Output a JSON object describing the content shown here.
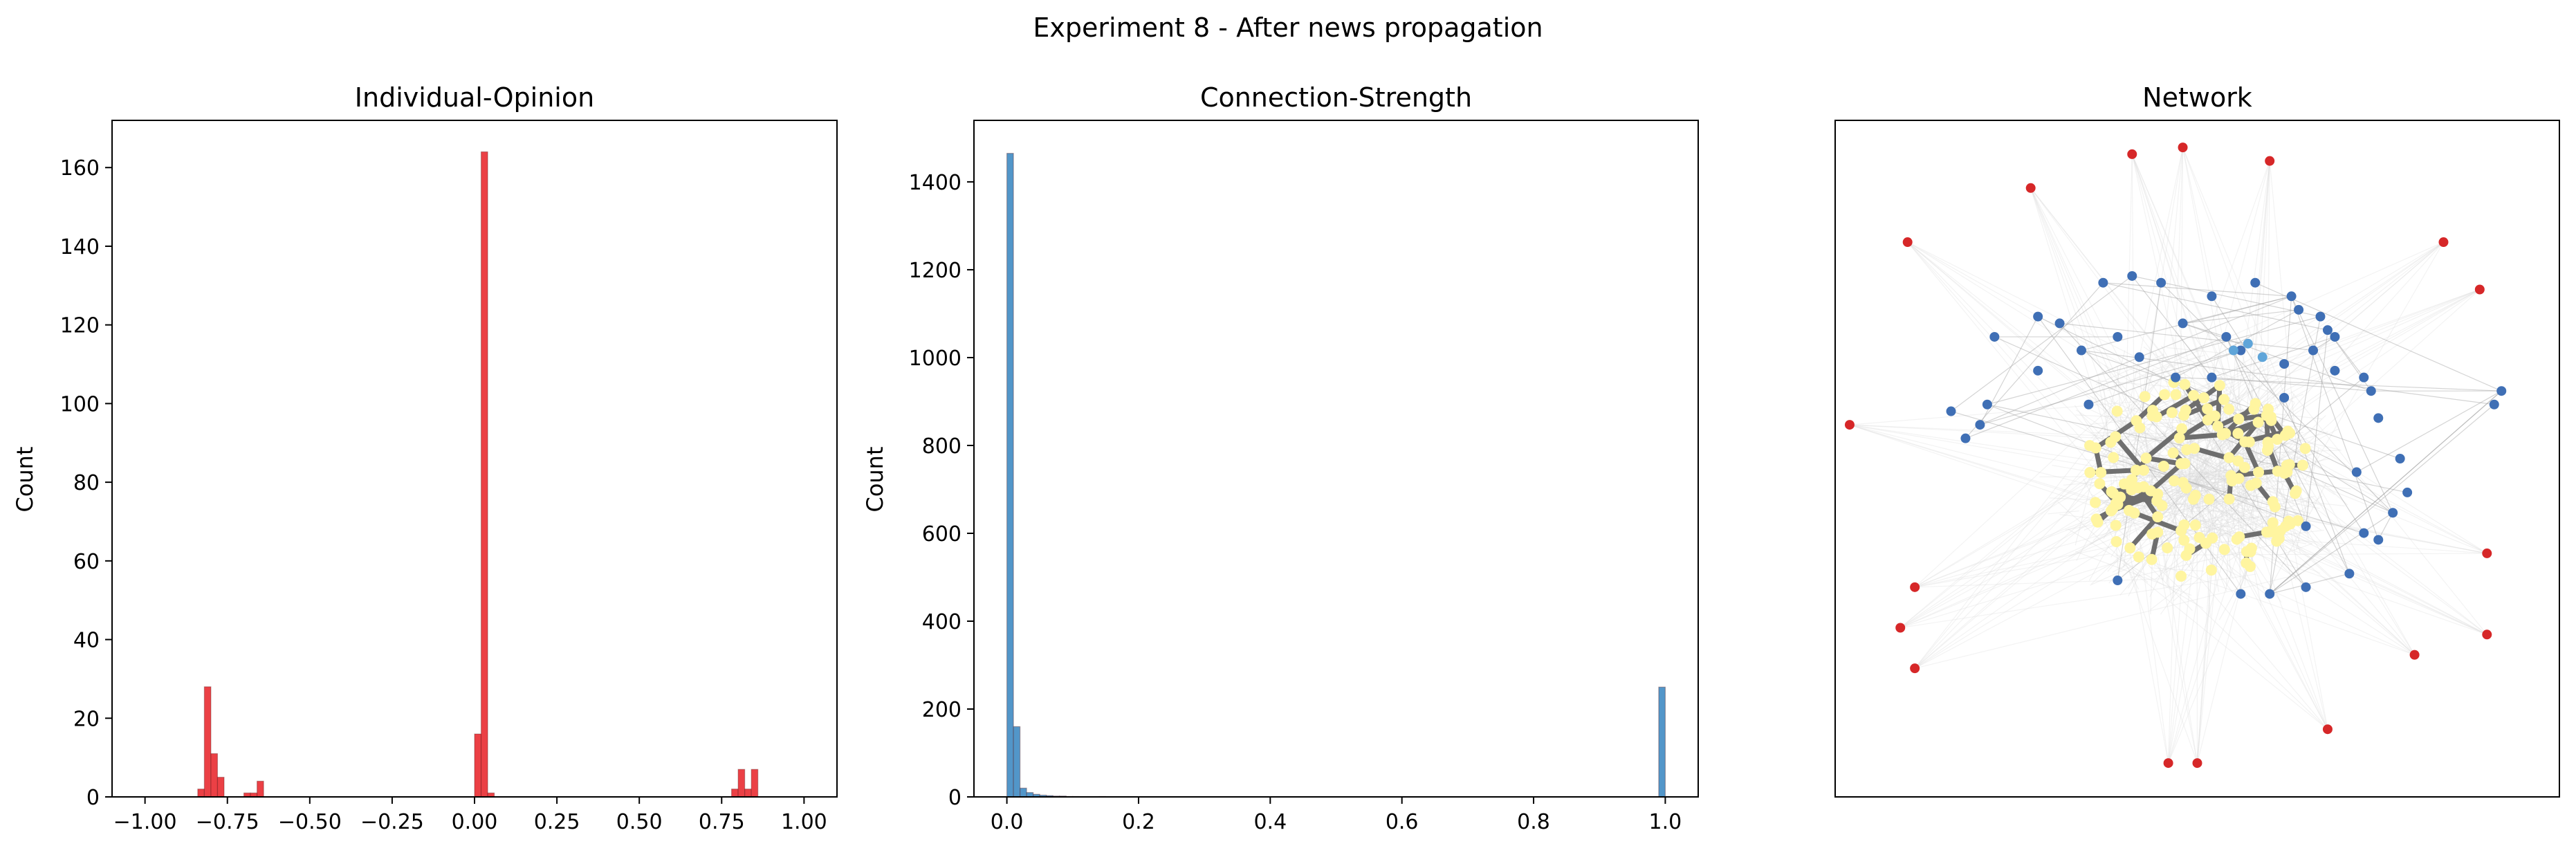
{
  "figure": {
    "title": "Experiment 8 - After news propagation"
  },
  "chart_data": [
    {
      "type": "bar",
      "title": "Individual-Opinion",
      "xlabel": "",
      "ylabel": "Count",
      "xlim": [
        -1.1,
        1.1
      ],
      "ylim": [
        0,
        172
      ],
      "xticks": [
        -1.0,
        -0.75,
        -0.5,
        -0.25,
        0.0,
        0.25,
        0.5,
        0.75,
        1.0
      ],
      "xtick_labels": [
        "−1.00",
        "−0.75",
        "−0.50",
        "−0.25",
        "0.00",
        "0.25",
        "0.50",
        "0.75",
        "1.00"
      ],
      "yticks": [
        0,
        20,
        40,
        60,
        80,
        100,
        120,
        140,
        160
      ],
      "yticks_labels": [
        "0",
        "20",
        "40",
        "60",
        "80",
        "100",
        "120",
        "140",
        "160"
      ],
      "bin_width": 0.02,
      "bins": [
        {
          "x": -0.84,
          "count": 2
        },
        {
          "x": -0.82,
          "count": 28
        },
        {
          "x": -0.8,
          "count": 11
        },
        {
          "x": -0.78,
          "count": 5
        },
        {
          "x": -0.7,
          "count": 1
        },
        {
          "x": -0.68,
          "count": 1
        },
        {
          "x": -0.66,
          "count": 4
        },
        {
          "x": 0.0,
          "count": 16
        },
        {
          "x": 0.02,
          "count": 164
        },
        {
          "x": 0.04,
          "count": 1
        },
        {
          "x": 0.78,
          "count": 2
        },
        {
          "x": 0.8,
          "count": 7
        },
        {
          "x": 0.82,
          "count": 2
        },
        {
          "x": 0.84,
          "count": 7
        }
      ],
      "bar_color": "#e8262b"
    },
    {
      "type": "bar",
      "title": "Connection-Strength",
      "xlabel": "",
      "ylabel": "Count",
      "xlim": [
        -0.05,
        1.05
      ],
      "ylim": [
        0,
        1540
      ],
      "xticks": [
        0.0,
        0.2,
        0.4,
        0.6,
        0.8,
        1.0
      ],
      "xtick_labels": [
        "0.0",
        "0.2",
        "0.4",
        "0.6",
        "0.8",
        "1.0"
      ],
      "yticks": [
        0,
        200,
        400,
        600,
        800,
        1000,
        1200,
        1400
      ],
      "yticks_labels": [
        "0",
        "200",
        "400",
        "600",
        "800",
        "1000",
        "1200",
        "1400"
      ],
      "bin_width": 0.01,
      "bins": [
        {
          "x": 0.0,
          "count": 1465
        },
        {
          "x": 0.01,
          "count": 160
        },
        {
          "x": 0.02,
          "count": 20
        },
        {
          "x": 0.03,
          "count": 10
        },
        {
          "x": 0.04,
          "count": 6
        },
        {
          "x": 0.05,
          "count": 4
        },
        {
          "x": 0.06,
          "count": 3
        },
        {
          "x": 0.07,
          "count": 2
        },
        {
          "x": 0.08,
          "count": 2
        },
        {
          "x": 0.09,
          "count": 1
        },
        {
          "x": 0.1,
          "count": 1
        },
        {
          "x": 0.14,
          "count": 1
        },
        {
          "x": 0.99,
          "count": 250
        }
      ],
      "bar_color": "#3a88c2"
    },
    {
      "type": "scatter",
      "title": "Network",
      "xlim": [
        0,
        100
      ],
      "ylim": [
        0,
        100
      ],
      "grid": false,
      "node_colors": {
        "outer": "#d62728",
        "middle": "#3f6fb5",
        "core": "#fff5a0",
        "light": "#5fa5d9"
      },
      "outer_nodes": [
        [
          41,
          95
        ],
        [
          48,
          96
        ],
        [
          60,
          94
        ],
        [
          27,
          90
        ],
        [
          10,
          82
        ],
        [
          84,
          82
        ],
        [
          89,
          75
        ],
        [
          2,
          55
        ],
        [
          11,
          31
        ],
        [
          90,
          36
        ],
        [
          9,
          25
        ],
        [
          90,
          24
        ],
        [
          11,
          19
        ],
        [
          80,
          21
        ],
        [
          68,
          10
        ],
        [
          50,
          5
        ],
        [
          46,
          5
        ]
      ],
      "middle_nodes": [
        [
          37,
          76
        ],
        [
          41,
          77
        ],
        [
          45,
          76
        ],
        [
          52,
          74
        ],
        [
          58,
          76
        ],
        [
          63,
          74
        ],
        [
          28,
          71
        ],
        [
          31,
          70
        ],
        [
          34,
          66
        ],
        [
          22,
          68
        ],
        [
          28,
          63
        ],
        [
          39,
          68
        ],
        [
          42,
          65
        ],
        [
          48,
          70
        ],
        [
          64,
          72
        ],
        [
          67,
          71
        ],
        [
          68,
          69
        ],
        [
          69,
          68
        ],
        [
          66,
          66
        ],
        [
          69,
          63
        ],
        [
          73,
          62
        ],
        [
          74,
          60
        ],
        [
          21,
          58
        ],
        [
          20,
          55
        ],
        [
          16,
          57
        ],
        [
          18,
          53
        ],
        [
          62,
          59
        ],
        [
          75,
          56
        ],
        [
          78,
          50
        ],
        [
          72,
          48
        ],
        [
          79,
          45
        ],
        [
          77,
          42
        ],
        [
          75,
          38
        ],
        [
          73,
          39
        ],
        [
          65,
          40
        ],
        [
          71,
          33
        ],
        [
          39,
          32
        ],
        [
          65,
          31
        ],
        [
          56,
          30
        ],
        [
          60,
          30
        ],
        [
          56,
          66
        ],
        [
          52,
          62
        ],
        [
          62,
          64
        ],
        [
          35,
          58
        ],
        [
          47,
          62
        ],
        [
          54,
          68
        ],
        [
          92,
          60
        ],
        [
          91,
          58
        ]
      ],
      "light_nodes": [
        [
          55,
          66
        ],
        [
          57,
          67
        ],
        [
          59,
          65
        ]
      ],
      "core_count": 150
    }
  ]
}
